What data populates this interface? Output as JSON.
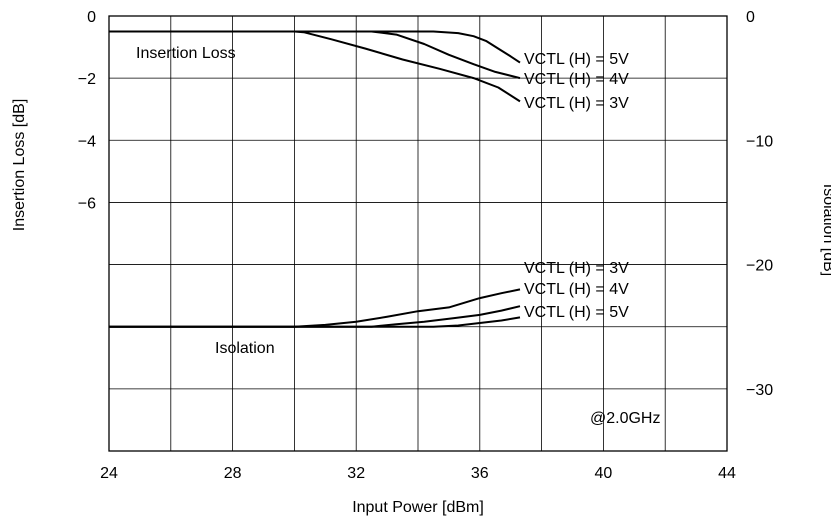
{
  "chart_data": {
    "type": "line",
    "xlabel": "Input Power [dBm]",
    "ylabel_left": "Insertion Loss [dB]",
    "ylabel_right": "Isolation [dB]",
    "xlim": [
      24,
      44
    ],
    "ylim_left": [
      -14,
      0
    ],
    "ylim_right": [
      -35,
      0
    ],
    "x_ticks": [
      "24",
      "28",
      "32",
      "36",
      "40",
      "44"
    ],
    "y_left_ticks": [
      {
        "value": 0,
        "label": "0"
      },
      {
        "value": -2,
        "label": "−2"
      },
      {
        "value": -4,
        "label": "−4"
      },
      {
        "value": -6,
        "label": "−6"
      }
    ],
    "y_right_ticks": [
      {
        "value": 0,
        "label": "0"
      },
      {
        "value": -10,
        "label": "−10"
      },
      {
        "value": -20,
        "label": "−20"
      },
      {
        "value": -30,
        "label": "−30"
      }
    ],
    "grid": true,
    "annotations": {
      "insertion_loss": "Insertion Loss",
      "isolation": "Isolation",
      "frequency": "@2.0GHz"
    },
    "series": [
      {
        "name": "VCTL (H) = 5V",
        "group": "insertion_loss",
        "axis": "left",
        "points": [
          [
            24,
            -0.5
          ],
          [
            30,
            -0.5
          ],
          [
            33,
            -0.5
          ],
          [
            34.5,
            -0.5
          ],
          [
            35.3,
            -0.55
          ],
          [
            35.8,
            -0.65
          ],
          [
            36.2,
            -0.8
          ],
          [
            36.6,
            -1.05
          ],
          [
            37.0,
            -1.3
          ],
          [
            37.3,
            -1.5
          ]
        ]
      },
      {
        "name": "VCTL (H) = 4V",
        "group": "insertion_loss",
        "axis": "left",
        "points": [
          [
            24,
            -0.5
          ],
          [
            30,
            -0.5
          ],
          [
            32.5,
            -0.5
          ],
          [
            33.3,
            -0.6
          ],
          [
            34.2,
            -0.9
          ],
          [
            35.0,
            -1.25
          ],
          [
            35.8,
            -1.55
          ],
          [
            36.5,
            -1.8
          ],
          [
            37.3,
            -2.0
          ]
        ]
      },
      {
        "name": "VCTL (H) = 3V",
        "group": "insertion_loss",
        "axis": "left",
        "points": [
          [
            24,
            -0.5
          ],
          [
            30,
            -0.5
          ],
          [
            30.3,
            -0.52
          ],
          [
            31.2,
            -0.75
          ],
          [
            32.3,
            -1.05
          ],
          [
            33.5,
            -1.4
          ],
          [
            34.7,
            -1.7
          ],
          [
            35.8,
            -2.0
          ],
          [
            36.6,
            -2.3
          ],
          [
            37.3,
            -2.75
          ]
        ]
      },
      {
        "name": "VCTL (H) = 3V",
        "group": "isolation",
        "axis": "right",
        "points": [
          [
            24,
            -25.0
          ],
          [
            30.0,
            -25.0
          ],
          [
            31.0,
            -24.85
          ],
          [
            32.0,
            -24.6
          ],
          [
            33.0,
            -24.2
          ],
          [
            34.0,
            -23.75
          ],
          [
            35.0,
            -23.45
          ],
          [
            36.0,
            -22.7
          ],
          [
            36.7,
            -22.3
          ],
          [
            37.3,
            -22.0
          ]
        ]
      },
      {
        "name": "VCTL (H) = 4V",
        "group": "isolation",
        "axis": "right",
        "points": [
          [
            24,
            -25.0
          ],
          [
            32.5,
            -25.0
          ],
          [
            33.3,
            -24.8
          ],
          [
            34.2,
            -24.6
          ],
          [
            35.2,
            -24.3
          ],
          [
            36.0,
            -24.05
          ],
          [
            36.7,
            -23.7
          ],
          [
            37.3,
            -23.35
          ]
        ]
      },
      {
        "name": "VCTL (H) = 5V",
        "group": "isolation",
        "axis": "right",
        "points": [
          [
            24,
            -25.0
          ],
          [
            34.5,
            -25.0
          ],
          [
            35.3,
            -24.9
          ],
          [
            36.0,
            -24.7
          ],
          [
            36.7,
            -24.5
          ],
          [
            37.3,
            -24.25
          ]
        ]
      }
    ],
    "curve_labels": {
      "il_5v": "VCTL (H) = 5V",
      "il_4v": "VCTL (H) = 4V",
      "il_3v": "VCTL (H) = 3V",
      "iso_3v": "VCTL (H) = 3V",
      "iso_4v": "VCTL (H) = 4V",
      "iso_5v": "VCTL (H) = 5V"
    }
  }
}
